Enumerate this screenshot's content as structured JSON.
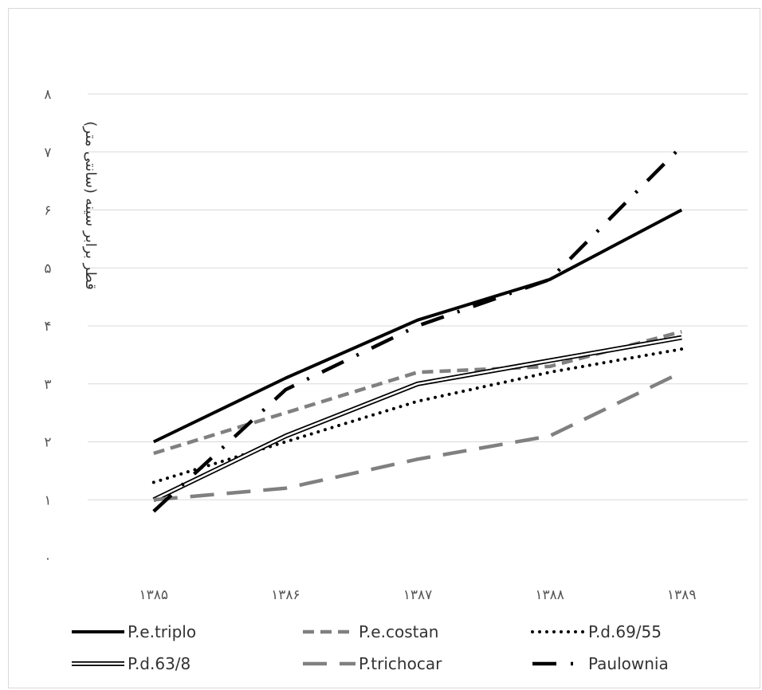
{
  "chart_data": {
    "type": "line",
    "title": "",
    "xlabel": "",
    "ylabel": "قطر برابر سینه (سانتی متر)",
    "ylim": [
      0,
      8
    ],
    "yticks": [
      "۰",
      "۱",
      "۲",
      "۳",
      "۴",
      "۵",
      "۶",
      "۷",
      "۸"
    ],
    "categories": [
      "۱۳۸۵",
      "۱۳۸۶",
      "۱۳۸۷",
      "۱۳۸۸",
      "۱۳۸۹"
    ],
    "grid": true,
    "legend_position": "bottom",
    "series": [
      {
        "name": "P.e.triplo",
        "values": [
          2.0,
          3.1,
          4.1,
          4.8,
          6.0
        ],
        "color": "#000000",
        "style": "solid"
      },
      {
        "name": "P.e.costan",
        "values": [
          1.8,
          2.5,
          3.2,
          3.3,
          3.9
        ],
        "color": "#808080",
        "style": "dashed"
      },
      {
        "name": "P.d.69/55",
        "values": [
          1.3,
          2.0,
          2.7,
          3.2,
          3.6
        ],
        "color": "#000000",
        "style": "dotted"
      },
      {
        "name": "P.d.63/8",
        "values": [
          1.0,
          2.1,
          3.0,
          3.4,
          3.8
        ],
        "color": "#000000",
        "style": "double"
      },
      {
        "name": "P.trichocar",
        "values": [
          1.0,
          1.2,
          1.7,
          2.1,
          3.2
        ],
        "color": "#808080",
        "style": "long-dash"
      },
      {
        "name": "Paulownia",
        "values": [
          0.8,
          2.9,
          4.0,
          4.8,
          7.1
        ],
        "color": "#000000",
        "style": "dash-dot"
      }
    ]
  }
}
